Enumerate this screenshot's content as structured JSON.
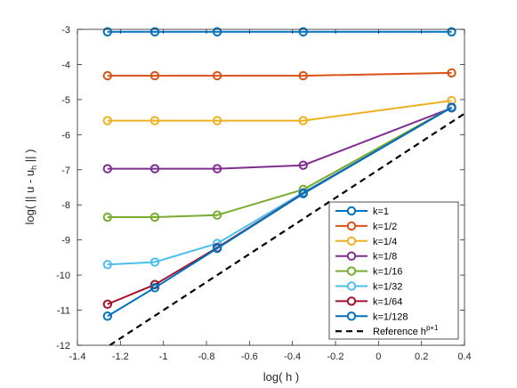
{
  "chart_data": {
    "type": "line",
    "xlabel": "log( h )",
    "ylabel": {
      "prefix": "log( || u - u",
      "sub": "h",
      "suffix": " || )"
    },
    "xlim": [
      -1.4,
      0.4
    ],
    "ylim": [
      -12,
      -3
    ],
    "xticks": [
      -1.4,
      -1.2,
      -1,
      -0.8,
      -0.6,
      -0.4,
      -0.2,
      0,
      0.2,
      0.4
    ],
    "xtick_labels": [
      "-1.4",
      "-1.2",
      "-1",
      "-0.8",
      "-0.6",
      "-0.4",
      "-0.2",
      "0",
      "0.2",
      "0.4"
    ],
    "yticks": [
      -12,
      -11,
      -10,
      -9,
      -8,
      -7,
      -6,
      -5,
      -4,
      -3
    ],
    "ytick_labels": [
      "-12",
      "-11",
      "-10",
      "-9",
      "-8",
      "-7",
      "-6",
      "-5",
      "-4",
      "-3"
    ],
    "legend_position": "bottom-right",
    "x": [
      -1.26,
      -1.04,
      -0.75,
      -0.35,
      0.34
    ],
    "series": [
      {
        "name": "k=1",
        "color": "#0072BD",
        "values": [
          -3.07,
          -3.07,
          -3.07,
          -3.07,
          -3.07
        ]
      },
      {
        "name": "k=1/2",
        "color": "#D95319",
        "values": [
          -4.32,
          -4.32,
          -4.32,
          -4.32,
          -4.24
        ]
      },
      {
        "name": "k=1/4",
        "color": "#EDB120",
        "values": [
          -5.6,
          -5.6,
          -5.6,
          -5.6,
          -5.03
        ]
      },
      {
        "name": "k=1/8",
        "color": "#7E2F8E",
        "values": [
          -6.97,
          -6.97,
          -6.97,
          -6.87,
          -5.24
        ]
      },
      {
        "name": "k=1/16",
        "color": "#77AC30",
        "values": [
          -8.35,
          -8.35,
          -8.29,
          -7.56,
          -5.22
        ]
      },
      {
        "name": "k=1/32",
        "color": "#4DBEEE",
        "values": [
          -9.7,
          -9.63,
          -9.1,
          -7.65,
          -5.23
        ]
      },
      {
        "name": "k=1/64",
        "color": "#A2142F",
        "values": [
          -10.83,
          -10.27,
          -9.22,
          -7.67,
          -5.22
        ]
      },
      {
        "name": "k=1/128",
        "color": "#0072BD",
        "values": [
          -11.17,
          -10.36,
          -9.24,
          -7.68,
          -5.22
        ]
      }
    ],
    "reference": {
      "name_prefix": "Reference h",
      "name_sup": "p+1",
      "color": "#000000",
      "x": [
        -1.25,
        0.4
      ],
      "y": [
        -12,
        -5.4
      ]
    }
  }
}
